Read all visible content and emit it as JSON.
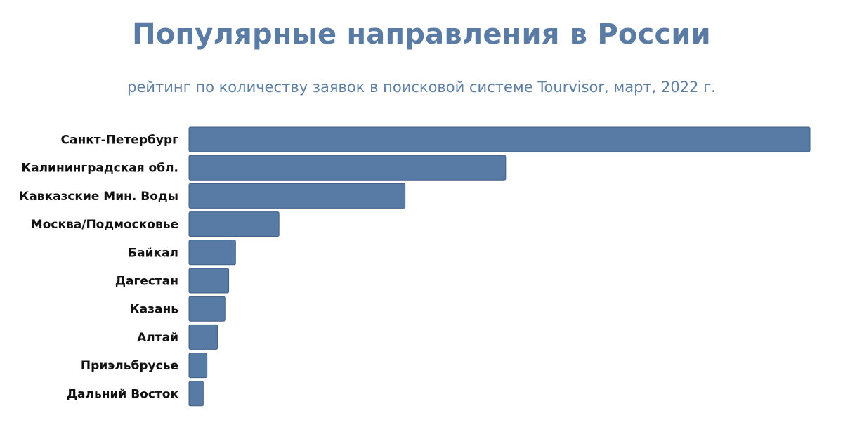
{
  "chart_data": {
    "type": "bar",
    "orientation": "horizontal",
    "title": "Популярные направления в России",
    "subtitle": "рейтинг по количеству заявок в поисковой системе Tourvisor, март, 2022 г.",
    "categories": [
      "Санкт-Петербург",
      "Калининградская обл.",
      "Кавказские Мин. Воды",
      "Москва/Подмосковье",
      "Байкал",
      "Дагестан",
      "Казань",
      "Алтай",
      "Приэльбрусье",
      "Дальний Восток"
    ],
    "values": [
      100,
      51,
      34.8,
      14.5,
      7.5,
      6.4,
      5.8,
      4.6,
      2.9,
      2.3
    ],
    "xlim": [
      0,
      100
    ],
    "grid": false,
    "legend": "none",
    "bar_color": "#587ba5",
    "bar_edge_color": "#3f5f86"
  }
}
